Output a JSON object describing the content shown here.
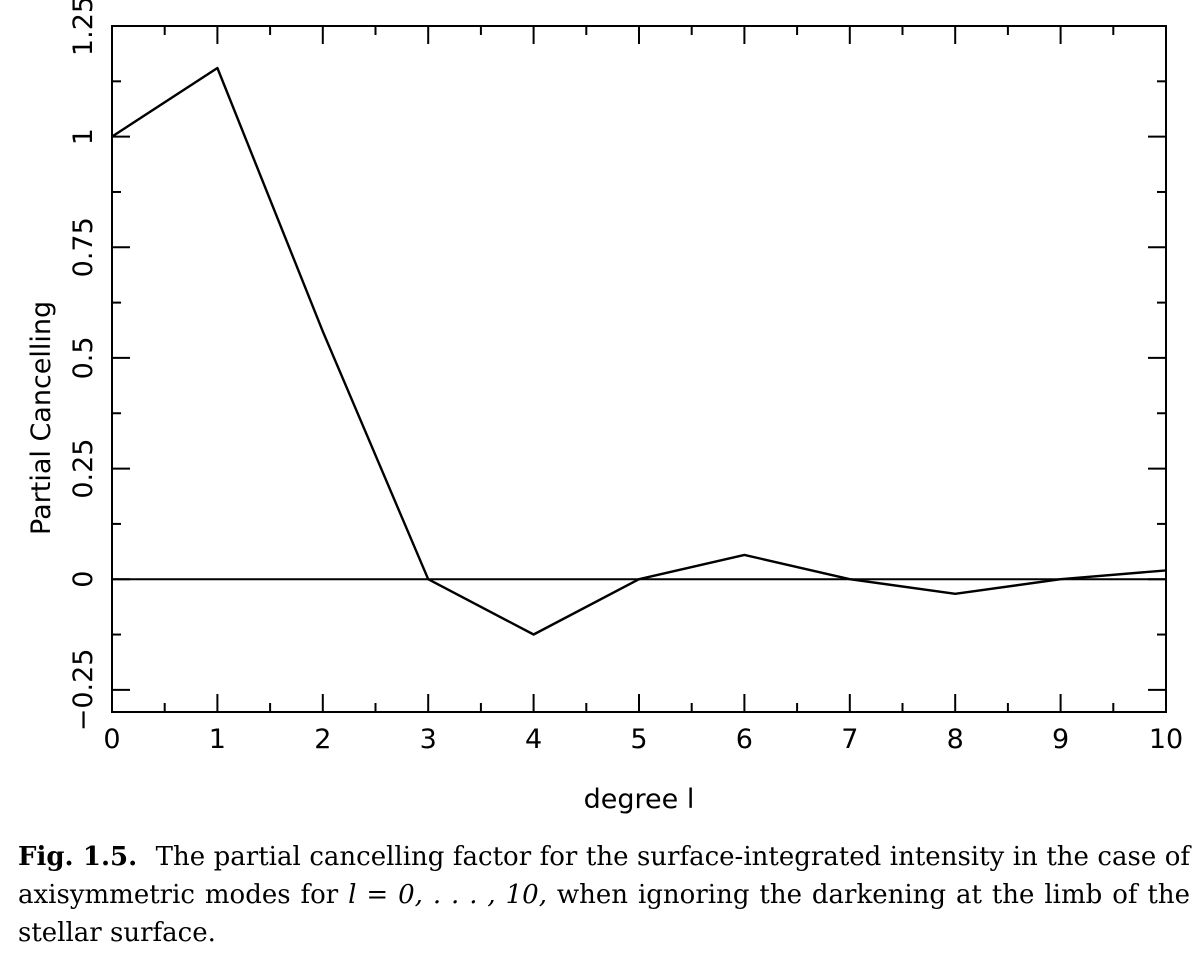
{
  "chart_data": {
    "type": "line",
    "x": [
      0,
      1,
      2,
      3,
      4,
      5,
      6,
      7,
      8,
      9,
      10
    ],
    "series": [
      {
        "values": [
          1.0,
          1.155,
          0.56,
          0.0,
          -0.125,
          0.0,
          0.055,
          0.0,
          -0.033,
          0.0,
          0.02
        ]
      }
    ],
    "xlabel": "degree l",
    "ylabel": "Partial Cancelling",
    "xlim": [
      0,
      10
    ],
    "ylim": [
      -0.3,
      1.25
    ],
    "xticks": [
      0,
      1,
      2,
      3,
      4,
      5,
      6,
      7,
      8,
      9,
      10
    ],
    "xtick_labels": [
      "0",
      "1",
      "2",
      "3",
      "4",
      "5",
      "6",
      "7",
      "8",
      "9",
      "10"
    ],
    "yticks": [
      -0.25,
      0,
      0.25,
      0.5,
      0.75,
      1,
      1.25
    ],
    "ytick_labels": [
      "−0.25",
      "0",
      "0.25",
      "0.5",
      "0.75",
      "1",
      "1.25"
    ],
    "reference_line_y": 0,
    "grid": false,
    "line_color": "#000000"
  },
  "caption": {
    "label": "Fig. 1.5.",
    "text_1": "The partial cancelling factor for the surface-integrated intensity in the case of axisymmetric modes for",
    "math": "l = 0, . . . , 10,",
    "text_2": "when ignoring the darkening at the limb of the stellar surface."
  }
}
